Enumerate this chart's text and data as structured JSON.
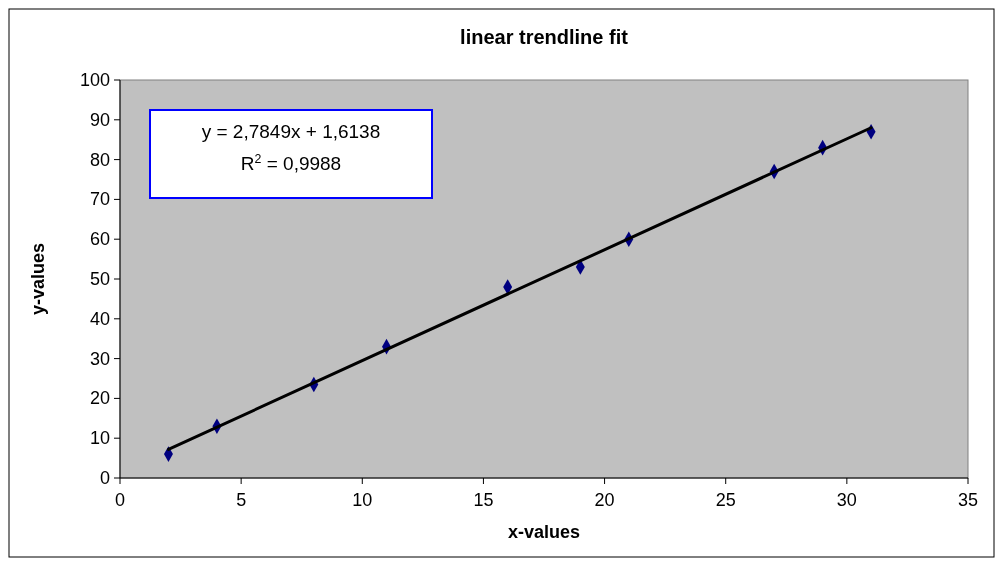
{
  "chart_data": {
    "type": "scatter",
    "title": "linear trendline fit",
    "xlabel": "x-values",
    "ylabel": "y-values",
    "xlim": [
      0,
      35
    ],
    "xticks": [
      0,
      5,
      10,
      15,
      20,
      25,
      30,
      35
    ],
    "ylim": [
      0,
      100
    ],
    "yticks": [
      0,
      10,
      20,
      30,
      40,
      50,
      60,
      70,
      80,
      90,
      100
    ],
    "grid": false,
    "annotations": [
      "y = 2,7849x + 1,6138",
      "R$^{2}$ = 0,9988"
    ],
    "series": [
      {
        "marker": "diamond",
        "color": "#000080",
        "x": [
          2,
          4,
          8,
          11,
          16,
          19,
          21,
          27,
          29,
          31
        ],
        "values": [
          6,
          13,
          23.5,
          33,
          48,
          53,
          60,
          77,
          83,
          87
        ]
      },
      {
        "type": "line",
        "marker": "none",
        "color": "#000000",
        "x": [
          2,
          31
        ],
        "values": [
          7.2,
          88.0
        ]
      }
    ]
  }
}
